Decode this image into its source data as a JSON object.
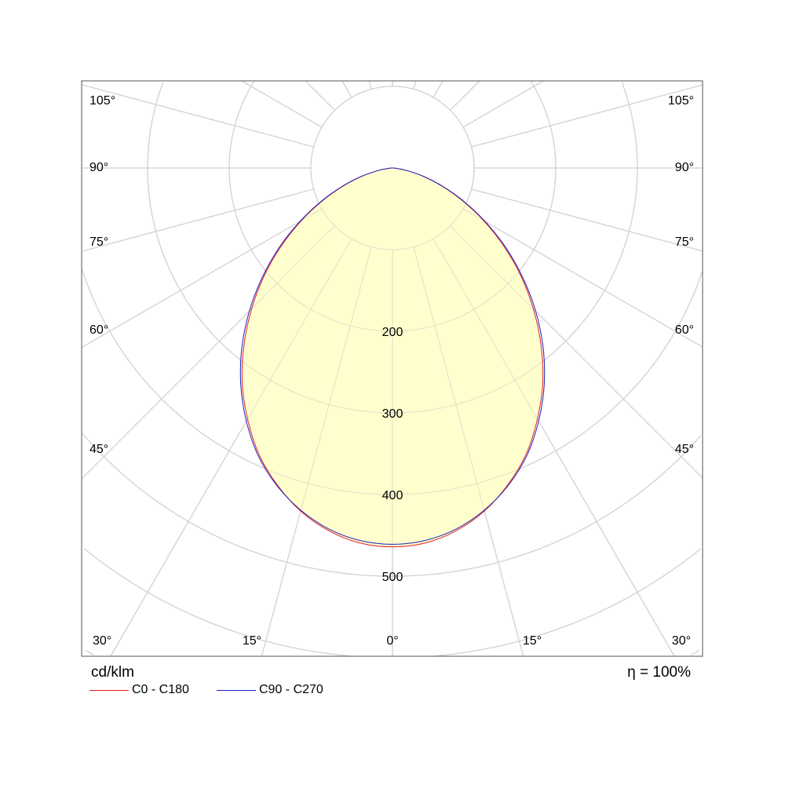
{
  "chart_data": {
    "type": "polar",
    "unit_label": "cd/klm",
    "efficiency_label": "η = ",
    "efficiency_value": "100%",
    "radial_ticks": [
      200,
      300,
      400,
      500
    ],
    "radial_grid_step": 100,
    "angle_labels": {
      "left": [
        "105°",
        "90°",
        "75°",
        "60°",
        "45°",
        "30°"
      ],
      "right": [
        "105°",
        "90°",
        "75°",
        "60°",
        "45°",
        "30°"
      ],
      "bottom": [
        "15°",
        "0°",
        "15°"
      ]
    },
    "angles_deg": [
      0,
      5,
      10,
      15,
      20,
      25,
      30,
      35,
      40,
      45,
      50,
      55,
      60,
      65,
      70,
      75,
      80,
      85,
      90
    ],
    "series": [
      {
        "name": "C0 - C180",
        "color": "#e02020",
        "values": [
          464,
          461,
          451,
          435,
          413,
          387,
          355,
          321,
          283,
          244,
          205,
          166,
          129,
          94,
          64,
          38,
          18,
          5,
          0
        ]
      },
      {
        "name": "C90 - C270",
        "color": "#2020c0",
        "values": [
          461,
          458,
          449,
          434,
          414,
          389,
          358,
          324,
          287,
          248,
          208,
          169,
          131,
          96,
          65,
          39,
          18,
          5,
          0
        ]
      }
    ],
    "fill_color": "#ffffc4",
    "grid_color": "#d4d4d4",
    "grid": true,
    "legend_placement": "bottom-left"
  }
}
